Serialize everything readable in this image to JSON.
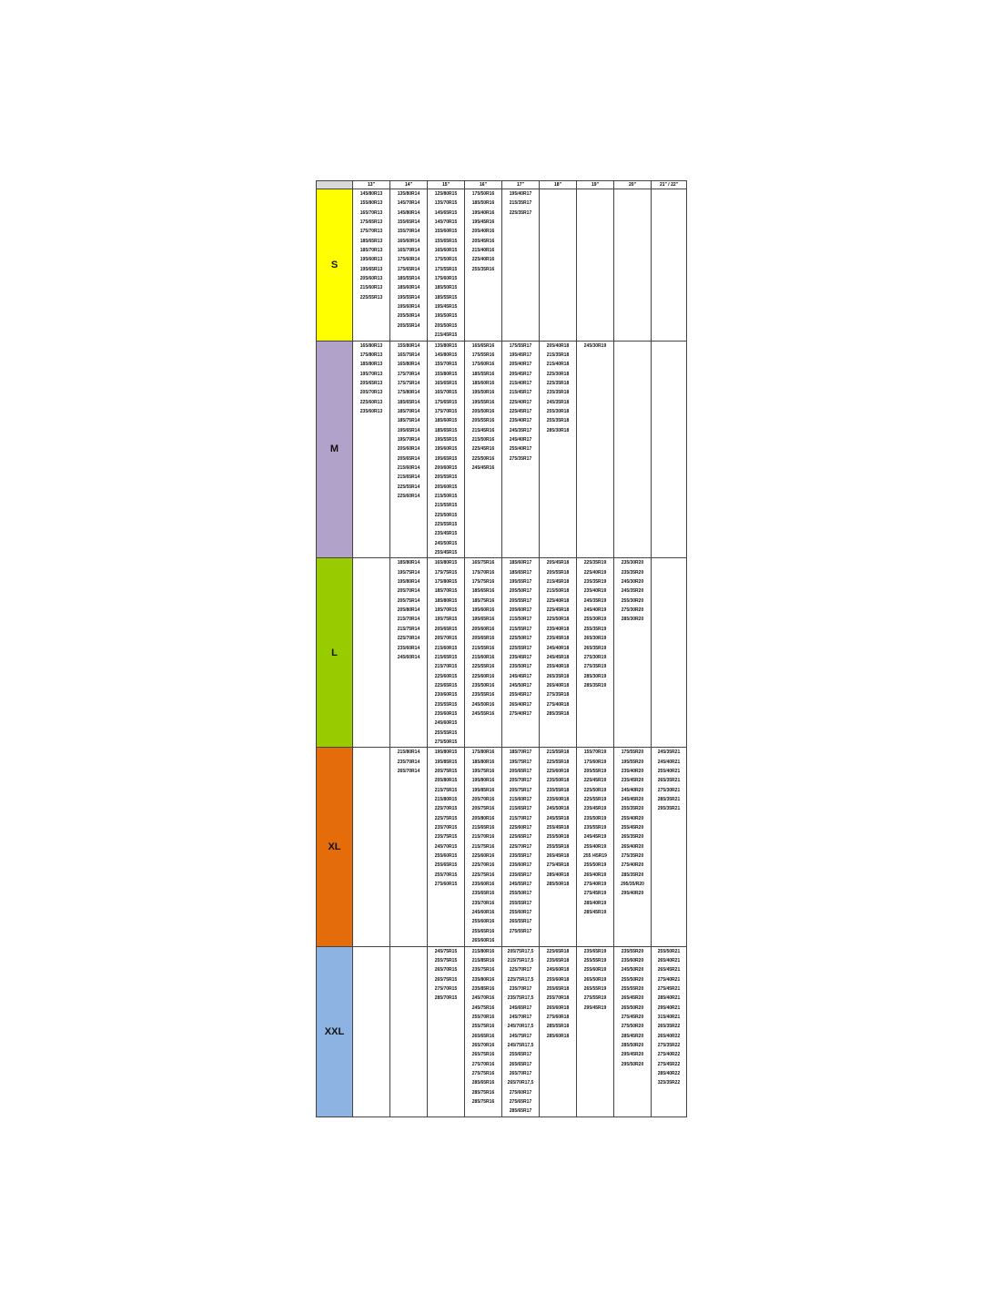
{
  "header": {
    "corner": "",
    "columns": [
      "13\"",
      "14\"",
      "15\"",
      "16\"",
      "17\"",
      "18\"",
      "19\"",
      "20\"",
      "21\" / 22\""
    ]
  },
  "rows": [
    {
      "label": "S",
      "color": "#ffff00",
      "cells": [
        [
          "145/80R13",
          "155/80R13",
          "165/70R13",
          "175/65R13",
          "175/70R13",
          "185/65R13",
          "185/70R13",
          "195/60R13",
          "195/65R13",
          "205/60R13",
          "215/60R13",
          "225/55R13"
        ],
        [
          "135/80R14",
          "145/70R14",
          "145/80R14",
          "155/65R14",
          "155/70R14",
          "165/60R14",
          "165/70R14",
          "175/60R14",
          "175/65R14",
          "185/55R14",
          "185/60R14",
          "195/55R14",
          "195/60R14",
          "205/50R14",
          "205/55R14"
        ],
        [
          "125/80R15",
          "135/70R15",
          "145/65R15",
          "145/70R15",
          "155/60R15",
          "155/65R15",
          "165/60R15",
          "175/50R15",
          "175/55R15",
          "175/60R15",
          "185/50R15",
          "185/55R15",
          "195/45R15",
          "195/50R15",
          "205/50R15",
          "215/45R15"
        ],
        [
          "175/50R16",
          "185/50R16",
          "195/40R16",
          "195/45R16",
          "205/40R16",
          "205/45R16",
          "215/40R16",
          "225/40R16",
          "255/35R16"
        ],
        [
          "195/40R17",
          "215/35R17",
          "225/35R17"
        ],
        [],
        [],
        [],
        []
      ]
    },
    {
      "label": "M",
      "color": "#b0a2c8",
      "cells": [
        [
          "165/80R13",
          "175/80R13",
          "185/80R13",
          "195/70R13",
          "205/65R13",
          "205/70R13",
          "225/60R13",
          "235/60R13"
        ],
        [
          "155/80R14",
          "165/75R14",
          "165/80R14",
          "175/70R14",
          "175/75R14",
          "175/80R14",
          "185/65R14",
          "185/70R14",
          "185/75R14",
          "195/65R14",
          "195/70R14",
          "205/60R14",
          "205/65R14",
          "215/60R14",
          "215/65R14",
          "225/55R14",
          "225/60R14"
        ],
        [
          "135/80R15",
          "145/80R15",
          "155/70R15",
          "155/80R15",
          "165/65R15",
          "165/70R15",
          "175/65R15",
          "175/70R15",
          "185/60R15",
          "185/65R15",
          "195/55R15",
          "195/60R15",
          "195/65R15",
          "200/60R15",
          "205/55R15",
          "205/60R15",
          "215/50R15",
          "215/55R15",
          "225/50R15",
          "225/55R15",
          "235/45R15",
          "245/50R15",
          "255/45R15"
        ],
        [
          "165/65R16",
          "175/55R16",
          "175/60R16",
          "185/55R16",
          "185/60R16",
          "195/50R16",
          "195/55R16",
          "205/50R16",
          "205/55R16",
          "215/45R16",
          "215/50R16",
          "225/45R16",
          "225/50R16",
          "245/45R16"
        ],
        [
          "175/55R17",
          "195/45R17",
          "205/40R17",
          "205/45R17",
          "215/40R17",
          "215/45R17",
          "225/40R17",
          "225/45R17",
          "235/40R17",
          "245/35R17",
          "245/40R17",
          "255/40R17",
          "275/35R17"
        ],
        [
          "205/40R18",
          "215/35R18",
          "215/40R18",
          "225/30R18",
          "225/35R18",
          "235/35R18",
          "245/35R18",
          "255/30R18",
          "255/35R18",
          "285/30R18"
        ],
        [
          "245/30R19"
        ],
        [],
        []
      ]
    },
    {
      "label": "L",
      "color": "#99cc00",
      "cells": [
        [],
        [
          "185/80R14",
          "195/75R14",
          "195/80R14",
          "205/70R14",
          "205/75R14",
          "205/80R14",
          "215/70R14",
          "215/75R14",
          "225/70R14",
          "235/60R14",
          "245/60R14"
        ],
        [
          "165/80R15",
          "175/75R15",
          "175/80R15",
          "185/70R15",
          "185/80R15",
          "195/70R15",
          "195/75R15",
          "205/65R15",
          "205/70R15",
          "215/60R15",
          "215/65R15",
          "215/70R15",
          "225/60R15",
          "225/65R15",
          "230/60R15",
          "235/55R15",
          "235/60R15",
          "245/60R15",
          "255/55R15",
          "275/50R15"
        ],
        [
          "165/75R16",
          "175/70R16",
          "175/75R16",
          "185/65R16",
          "185/75R16",
          "195/60R16",
          "195/65R16",
          "205/60R16",
          "205/65R16",
          "215/55R16",
          "215/60R16",
          "225/55R16",
          "225/60R16",
          "235/50R16",
          "235/55R16",
          "245/50R16",
          "245/55R16"
        ],
        [
          "185/60R17",
          "185/65R17",
          "195/55R17",
          "205/50R17",
          "205/55R17",
          "205/60R17",
          "215/50R17",
          "215/55R17",
          "225/50R17",
          "225/55R17",
          "235/45R17",
          "235/50R17",
          "245/45R17",
          "245/50R17",
          "255/45R17",
          "265/40R17",
          "275/40R17"
        ],
        [
          "205/45R18",
          "205/55R18",
          "215/45R18",
          "215/50R18",
          "225/40R18",
          "225/45R18",
          "225/50R18",
          "235/40R18",
          "235/45R18",
          "245/40R18",
          "245/45R18",
          "255/40R18",
          "265/35R18",
          "265/40R18",
          "275/35R18",
          "275/40R18",
          "285/35R18"
        ],
        [
          "225/35R19",
          "225/40R19",
          "235/35R19",
          "235/40R19",
          "245/35R19",
          "245/40R19",
          "255/30R19",
          "255/35R19",
          "265/30R19",
          "265/35R19",
          "275/30R19",
          "275/35R19",
          "285/30R19",
          "285/35R19"
        ],
        [
          "235/30R20",
          "235/35R20",
          "245/30R20",
          "245/35R20",
          "255/30R20",
          "275/30R20",
          "285/30R20"
        ],
        []
      ]
    },
    {
      "label": "XL",
      "color": "#e46c0a",
      "cells": [
        [],
        [
          "215/80R14",
          "235/70R14",
          "265/70R14"
        ],
        [
          "195/80R15",
          "195/85R15",
          "205/75R15",
          "205/80R15",
          "215/75R15",
          "215/80R15",
          "225/70R15",
          "225/75R15",
          "235/70R15",
          "235/75R15",
          "245/70R15",
          "255/60R15",
          "255/65R15",
          "255/70R15",
          "275/60R15"
        ],
        [
          "175/80R16",
          "185/80R16",
          "195/75R16",
          "195/80R16",
          "195/85R16",
          "205/70R16",
          "205/75R16",
          "205/80R16",
          "215/65R16",
          "215/70R16",
          "215/75R16",
          "225/60R16",
          "225/70R16",
          "225/75R16",
          "235/60R16",
          "235/65R16",
          "235/70R16",
          "245/60R16",
          "255/60R16",
          "255/65R16",
          "265/60R16"
        ],
        [
          "185/70R17",
          "195/75R17",
          "205/65R17",
          "205/70R17",
          "205/75R17",
          "215/60R17",
          "215/65R17",
          "215/70R17",
          "225/60R17",
          "225/65R17",
          "225/70R17",
          "235/55R17",
          "235/60R17",
          "235/65R17",
          "245/55R17",
          "255/50R17",
          "255/55R17",
          "255/60R17",
          "265/55R17",
          "275/55R17"
        ],
        [
          "215/55R18",
          "225/55R18",
          "225/60R18",
          "235/50R18",
          "235/55R18",
          "235/60R18",
          "245/50R18",
          "245/55R18",
          "255/45R18",
          "255/50R18",
          "255/55R18",
          "265/45R18",
          "275/45R18",
          "285/40R18",
          "285/50R18"
        ],
        [
          "155/70R19",
          "175/60R19",
          "205/55R19",
          "225/45R19",
          "225/50R19",
          "225/55R19",
          "235/45R19",
          "235/50R19",
          "235/55R19",
          "245/45R19",
          "255/40R19",
          "255 /45R19",
          "255/50R19",
          "265/40R19",
          "275/40R19",
          "275/45R19",
          "285/40R19",
          "285/45R19"
        ],
        [
          "175/55R20",
          "195/55R20",
          "235/40R20",
          "235/45R20",
          "245/40R20",
          "245/45R20",
          "255/35R20",
          "255/40R20",
          "255/45R20",
          "265/35R20",
          "265/40R20",
          "275/35R20",
          "275/40R20",
          "285/35R20",
          "295/35/R20",
          "295/40R20"
        ],
        [
          "245/35R21",
          "245/40R21",
          "255/40R21",
          "265/35R21",
          "275/30R21",
          "285/35R21",
          "295/35R21"
        ]
      ]
    },
    {
      "label": "XXL",
      "color": "#8db3e2",
      "cells": [
        [],
        [],
        [
          "245/75R15",
          "255/75R15",
          "265/70R15",
          "265/75R15",
          "275/70R15",
          "285/70R15"
        ],
        [
          "215/80R16",
          "215/85R16",
          "235/75R16",
          "235/80R16",
          "235/85R16",
          "245/70R16",
          "245/75R16",
          "255/70R16",
          "255/75R16",
          "265/65R16",
          "265/70R16",
          "265/75R16",
          "275/70R16",
          "275/75R16",
          "285/65R16",
          "285/75R16",
          "285/75R16"
        ],
        [
          "205/75R17,5",
          "215/75R17,5",
          "225/70R17",
          "225/75R17,5",
          "235/70R17",
          "235/75R17,5",
          "245/65R17",
          "245/70R17",
          "245/70R17,5",
          "245/75R17",
          "245/75R17,5",
          "255/65R17",
          "265/65R17",
          "265/70R17",
          "265/70R17,5",
          "275/60R17",
          "275/65R17",
          "285/65R17"
        ],
        [
          "225/65R18",
          "235/65R18",
          "245/60R18",
          "255/60R18",
          "255/65R18",
          "255/70R18",
          "265/60R18",
          "275/60R18",
          "285/55R18",
          "285/60R18"
        ],
        [
          "235/65R19",
          "255/55R19",
          "255/60R19",
          "265/50R19",
          "265/55R19",
          "275/55R19",
          "295/45R19"
        ],
        [
          "235/55R20",
          "235/60R20",
          "245/50R20",
          "255/50R20",
          "255/55R20",
          "265/45R20",
          "265/50R20",
          "275/45R20",
          "275/50R20",
          "285/45R20",
          "285/50R20",
          "295/45R20",
          "295/50R20"
        ],
        [
          "255/50R21",
          "265/40R21",
          "265/45R21",
          "275/40R21",
          "275/45R21",
          "285/40R21",
          "295/40R21",
          "315/40R21",
          "265/35R22",
          "265/40R22",
          "275/35R22",
          "275/40R22",
          "275/45R22",
          "285/40R22",
          "325/35R22"
        ]
      ]
    }
  ]
}
